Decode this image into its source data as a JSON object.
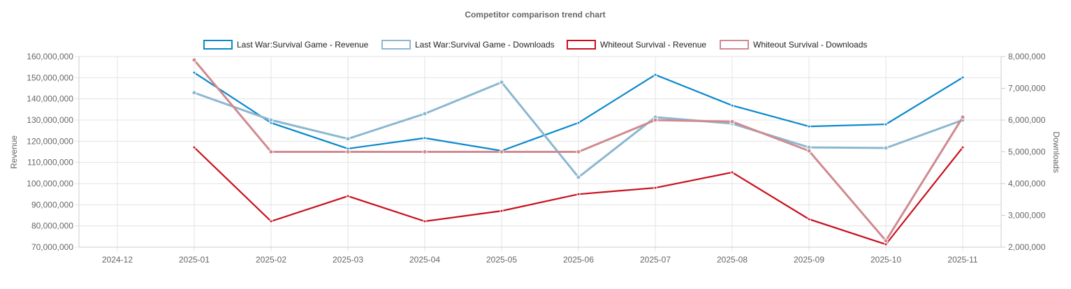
{
  "chart_data": {
    "type": "line",
    "title": "Competitor comparison trend chart",
    "categories": [
      "2024-12",
      "2025-01",
      "2025-02",
      "2025-03",
      "2025-04",
      "2025-05",
      "2025-06",
      "2025-07",
      "2025-08",
      "2025-09",
      "2025-10",
      "2025-11"
    ],
    "y_left": {
      "label": "Revenue",
      "range": [
        70000000,
        160000000
      ],
      "ticks": [
        "70,000,000",
        "80,000,000",
        "90,000,000",
        "100,000,000",
        "110,000,000",
        "120,000,000",
        "130,000,000",
        "140,000,000",
        "150,000,000",
        "160,000,000"
      ]
    },
    "y_right": {
      "label": "Downloads",
      "range": [
        2000000,
        8000000
      ],
      "ticks": [
        "2,000,000",
        "3,000,000",
        "4,000,000",
        "5,000,000",
        "6,000,000",
        "7,000,000",
        "8,000,000"
      ]
    },
    "grid": true,
    "legend_position": "top",
    "series": [
      {
        "name": "Last War:Survival Game - Revenue",
        "axis": "left",
        "color": "#0a88cc",
        "values": [
          null,
          152400000,
          128700000,
          116500000,
          121500000,
          115500000,
          128700000,
          151400000,
          136900000,
          127000000,
          128000000,
          150100000
        ]
      },
      {
        "name": "Last War:Survival Game - Downloads",
        "axis": "right",
        "color": "#8bb8d0",
        "values": [
          null,
          6860000,
          6000000,
          5410000,
          6200000,
          7190000,
          4200000,
          6090000,
          5890000,
          5140000,
          5120000,
          6000000
        ]
      },
      {
        "name": "Whiteout Survival - Revenue",
        "axis": "left",
        "color": "#c8101c",
        "values": [
          null,
          117100000,
          82200000,
          94100000,
          82200000,
          87100000,
          95000000,
          98000000,
          105300000,
          83200000,
          71300000,
          117100000
        ]
      },
      {
        "name": "Whiteout Survival - Downloads",
        "axis": "right",
        "color": "#d08a90",
        "values": [
          null,
          7890000,
          5000000,
          5000000,
          5000000,
          5000000,
          5000000,
          6000000,
          5950000,
          5030000,
          2200000,
          6090000
        ]
      }
    ]
  }
}
